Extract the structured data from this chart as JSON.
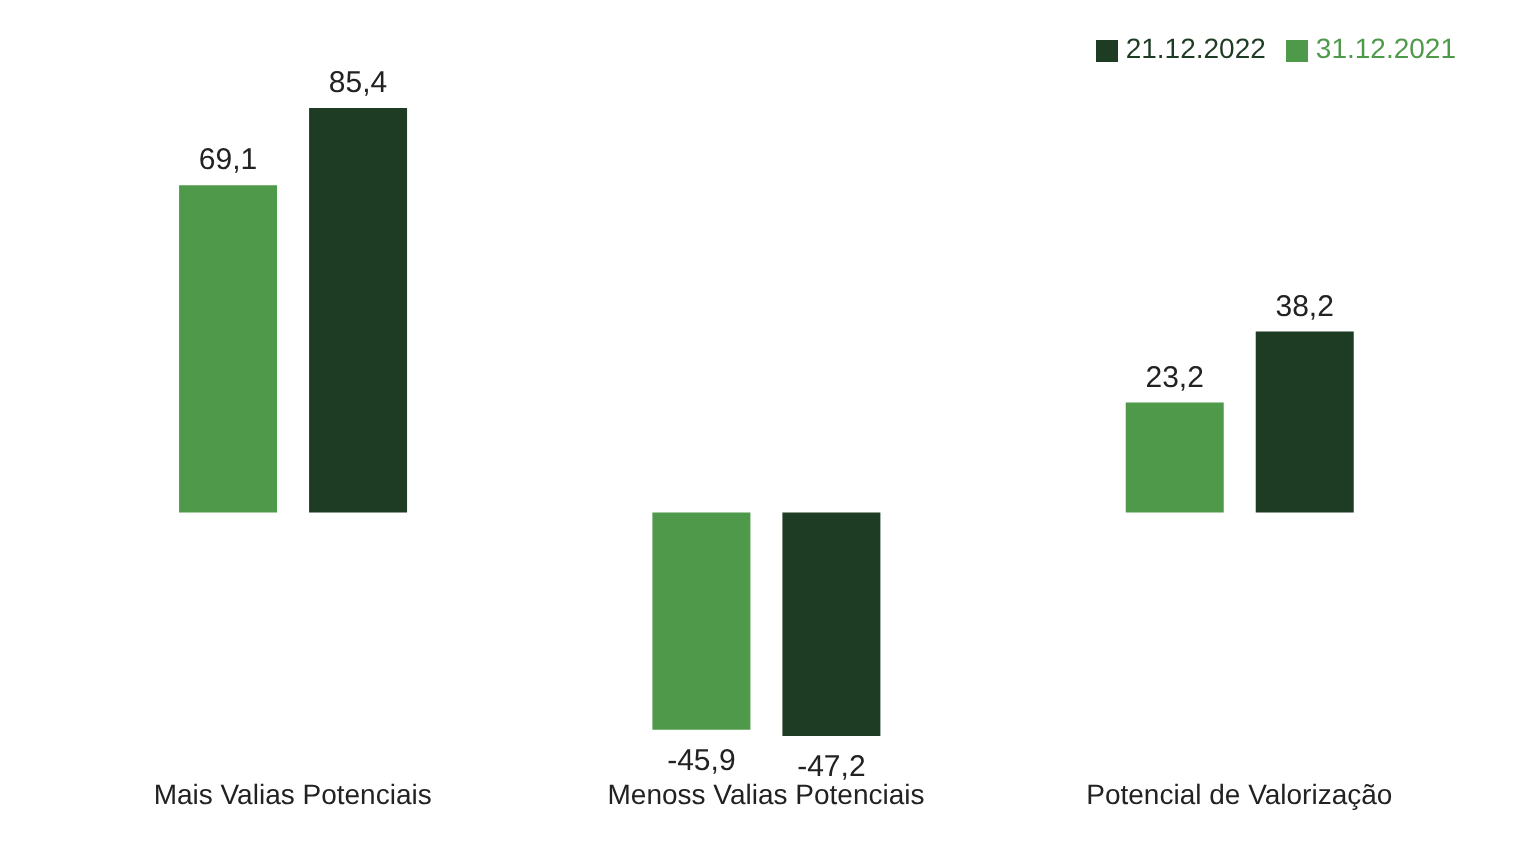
{
  "chart_data": {
    "type": "bar",
    "categories": [
      "Mais Valias Potenciais",
      "Menoss Valias Potenciais",
      "Potencial de Valorização"
    ],
    "series": [
      {
        "name": "31.12.2021",
        "color": "#4f9a4a",
        "values": [
          69.1,
          -45.9,
          23.2
        ],
        "value_labels": [
          "69,1",
          "-45,9",
          "23,2"
        ]
      },
      {
        "name": "21.12.2022",
        "color": "#1e3b23",
        "values": [
          85.4,
          -47.2,
          38.2
        ],
        "value_labels": [
          "85,4",
          "-47,2",
          "38,2"
        ]
      }
    ],
    "legend": "top right",
    "grid": false
  }
}
